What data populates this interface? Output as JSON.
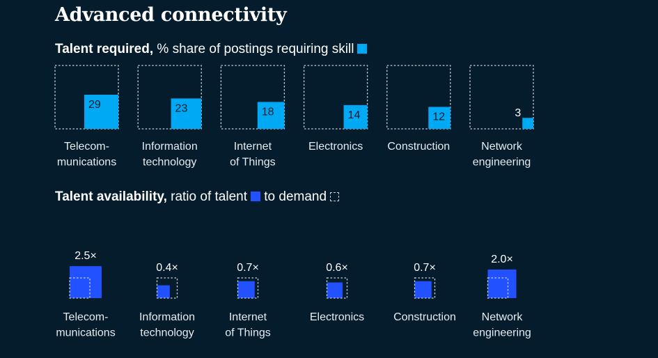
{
  "title": "Advanced connectivity",
  "talent_required": {
    "heading_bold": "Talent required,",
    "heading_rest": " % share of postings requiring skill",
    "color": "#00a9f4"
  },
  "talent_availability": {
    "heading_bold": "Talent availability,",
    "heading_mid": " ratio of talent",
    "heading_end": " to demand",
    "color": "#2251ff"
  },
  "chart_data": [
    {
      "type": "bar",
      "title": "Talent required, % share of postings requiring skill",
      "categories": [
        [
          "Telecom-",
          "munications"
        ],
        [
          "Information",
          "technology"
        ],
        [
          "Internet",
          "of Things"
        ],
        [
          "Electronics"
        ],
        [
          "Construction"
        ],
        [
          "Network",
          "engineering"
        ]
      ],
      "values": [
        29,
        23,
        18,
        14,
        12,
        3
      ],
      "value_labels": [
        "29",
        "23",
        "18",
        "14",
        "12",
        "3"
      ],
      "ylim": [
        0,
        100
      ]
    },
    {
      "type": "bar",
      "title": "Talent availability, ratio of talent to demand",
      "categories": [
        [
          "Telecom-",
          "munications"
        ],
        [
          "Information",
          "technology"
        ],
        [
          "Internet",
          "of Things"
        ],
        [
          "Electronics"
        ],
        [
          "Construction"
        ],
        [
          "Network",
          "engineering"
        ]
      ],
      "values": [
        2.5,
        0.4,
        0.7,
        0.6,
        0.7,
        2.0
      ],
      "value_labels": [
        "2.5×",
        "0.4×",
        "0.7×",
        "0.6×",
        "0.7×",
        "2.0×"
      ],
      "demand_reference": 1.0
    }
  ]
}
